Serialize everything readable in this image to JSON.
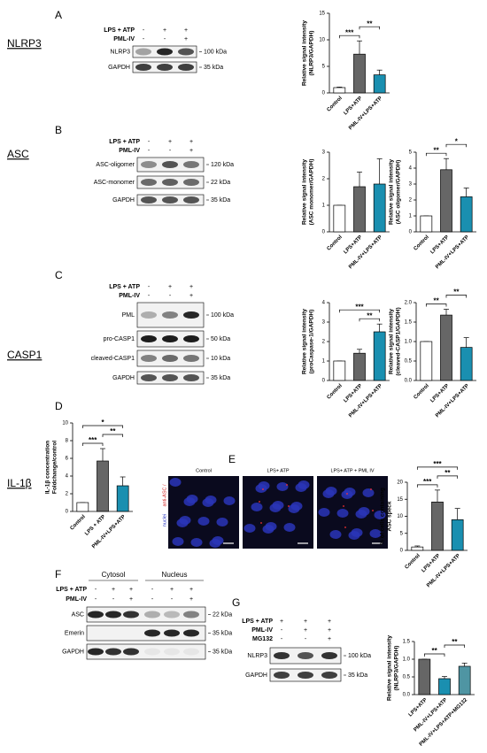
{
  "row_labels": [
    "NLRP3",
    "ASC",
    "CASP1",
    "IL-1β"
  ],
  "panel_letters": [
    "A",
    "B",
    "C",
    "D",
    "E",
    "F",
    "G"
  ],
  "blots": [
    {
      "conditions": [
        {
          "name": "LPS + ATP",
          "signs": [
            "-",
            "+",
            "+"
          ]
        },
        {
          "name": "PML-IV",
          "signs": [
            "-",
            "-",
            "+"
          ]
        }
      ],
      "rows": [
        {
          "name": "NLRP3",
          "kda": "100 kDa"
        },
        {
          "name": "GAPDH",
          "kda": "35 kDa"
        }
      ]
    },
    {
      "conditions": [
        {
          "name": "LPS + ATP",
          "signs": [
            "-",
            "+",
            "+"
          ]
        },
        {
          "name": "PML-IV",
          "signs": [
            "-",
            "-",
            "+"
          ]
        }
      ],
      "rows": [
        {
          "name": "ASC-oligomer",
          "kda": "120 kDa"
        },
        {
          "name": "ASC-monomer",
          "kda": "22 kDa"
        },
        {
          "name": "GAPDH",
          "kda": "35 kDa"
        }
      ]
    },
    {
      "conditions": [
        {
          "name": "LPS + ATP",
          "signs": [
            "-",
            "+",
            "+"
          ]
        },
        {
          "name": "PML-IV",
          "signs": [
            "-",
            "-",
            "+"
          ]
        }
      ],
      "rows": [
        {
          "name": "PML",
          "kda": "100 kDa"
        },
        {
          "name": "pro-CASP1",
          "kda": "50 kDa"
        },
        {
          "name": "cleaved-CASP1",
          "kda": "10 kDa"
        },
        {
          "name": "GAPDH",
          "kda": "35 kDa"
        }
      ]
    },
    {
      "groups": [
        "Cytosol",
        "Nucleus"
      ],
      "conditions": [
        {
          "name": "LPS + ATP",
          "signs": [
            "-",
            "+",
            "+",
            "-",
            "+",
            "+"
          ]
        },
        {
          "name": "PML-IV",
          "signs": [
            "-",
            "-",
            "+",
            "-",
            "-",
            "+"
          ]
        }
      ],
      "rows": [
        {
          "name": "ASC",
          "kda": "22 kDa"
        },
        {
          "name": "Emerin",
          "kda": "35 kDa"
        },
        {
          "name": "GAPDH",
          "kda": "35 kDa"
        }
      ]
    },
    {
      "conditions": [
        {
          "name": "LPS + ATP",
          "signs": [
            "+",
            "+",
            "+"
          ]
        },
        {
          "name": "PML-IV",
          "signs": [
            "-",
            "+",
            "+"
          ]
        },
        {
          "name": "MG132",
          "signs": [
            "-",
            "-",
            "+"
          ]
        }
      ],
      "rows": [
        {
          "name": "NLRP3",
          "kda": "100 kDa"
        },
        {
          "name": "GAPDH",
          "kda": "35 kDa"
        }
      ]
    }
  ],
  "microscopy": {
    "labels": [
      "Control",
      "LPS+ ATP",
      "LPS+ ATP + PML IV"
    ],
    "stain": [
      "anti-ASC /",
      "nuclei"
    ]
  },
  "chart_data": [
    {
      "type": "bar",
      "ylabel_lines": [
        "Relative signal intensity",
        "(NLRP3/GAPDH)"
      ],
      "categories": [
        "Control",
        "LPS+ATP",
        "PML-IV+LPS+ATP"
      ],
      "values": [
        1,
        7.3,
        3.4
      ],
      "errors": [
        0.1,
        2.5,
        0.9
      ],
      "colors": [
        "#ffffff",
        "#666666",
        "#1a8fb0"
      ],
      "ylim": [
        0,
        15
      ],
      "yticks": [
        0,
        5,
        10,
        15
      ],
      "significance": [
        {
          "between": [
            "Control",
            "LPS+ATP"
          ],
          "label": "***"
        },
        {
          "between": [
            "LPS+ATP",
            "PML-IV+LPS+ATP"
          ],
          "label": "**"
        }
      ]
    },
    {
      "type": "bar",
      "ylabel_lines": [
        "Relative signal intensity",
        "(ASC monomer/GAPDH)"
      ],
      "categories": [
        "Control",
        "LPS+ATP",
        "PML-IV+LPS+ATP"
      ],
      "values": [
        1,
        1.7,
        1.8
      ],
      "errors": [
        0,
        0.55,
        0.95
      ],
      "colors": [
        "#ffffff",
        "#666666",
        "#1a8fb0"
      ],
      "ylim": [
        0,
        3
      ],
      "yticks": [
        0,
        1,
        2,
        3
      ],
      "significance": []
    },
    {
      "type": "bar",
      "ylabel_lines": [
        "Relative signal intensity",
        "(ASC oligomer/GAPDH)"
      ],
      "categories": [
        "Control",
        "LPS+ATP",
        "PML-IV+LPS+ATP"
      ],
      "values": [
        1,
        3.9,
        2.2
      ],
      "errors": [
        0,
        0.7,
        0.55
      ],
      "colors": [
        "#ffffff",
        "#666666",
        "#1a8fb0"
      ],
      "ylim": [
        0,
        5
      ],
      "yticks": [
        0,
        1,
        2,
        3,
        4,
        5
      ],
      "significance": [
        {
          "between": [
            "Control",
            "LPS+ATP"
          ],
          "label": "**"
        },
        {
          "between": [
            "LPS+ATP",
            "PML-IV+LPS+ATP"
          ],
          "label": "*"
        }
      ]
    },
    {
      "type": "bar",
      "ylabel_lines": [
        "Relative signal intensity",
        "(proCaspase-1/GAPDH)"
      ],
      "categories": [
        "Control",
        "LPS+ATP",
        "PML-IV+LPS+ATP"
      ],
      "values": [
        1,
        1.4,
        2.5
      ],
      "errors": [
        0,
        0.2,
        0.4
      ],
      "colors": [
        "#ffffff",
        "#666666",
        "#1a8fb0"
      ],
      "ylim": [
        0,
        4
      ],
      "yticks": [
        0,
        1,
        2,
        3,
        4
      ],
      "significance": [
        {
          "between": [
            "LPS+ATP",
            "PML-IV+LPS+ATP"
          ],
          "label": "**"
        },
        {
          "between": [
            "Control",
            "PML-IV+LPS+ATP"
          ],
          "label": "***"
        }
      ]
    },
    {
      "type": "bar",
      "ylabel_lines": [
        "Relative signal intensity",
        "(cleaved-CASP1/GAPDH)"
      ],
      "categories": [
        "Control",
        "LPS+ATP",
        "PML-IV+LPS+ATP"
      ],
      "values": [
        1,
        1.68,
        0.85
      ],
      "errors": [
        0,
        0.15,
        0.25
      ],
      "colors": [
        "#ffffff",
        "#666666",
        "#1a8fb0"
      ],
      "ylim": [
        0,
        2
      ],
      "yticks": [
        {
          "value": 0,
          "label": "0.0"
        },
        0.5,
        {
          "value": 1,
          "label": "1.0"
        },
        1.5,
        {
          "value": 2,
          "label": "2.0"
        }
      ],
      "significance": [
        {
          "between": [
            "Control",
            "LPS+ATP"
          ],
          "label": "**"
        },
        {
          "between": [
            "LPS+ATP",
            "PML-IV+LPS+ATP"
          ],
          "label": "**"
        }
      ]
    },
    {
      "type": "bar",
      "ylabel_lines": [
        "IL-1β concentration",
        "Foldchange/control"
      ],
      "categories": [
        "Control",
        "LPS + ATP",
        "PML-IV+LPS+ATP"
      ],
      "values": [
        1,
        5.7,
        2.9
      ],
      "errors": [
        0,
        1.4,
        1.0
      ],
      "colors": [
        "#ffffff",
        "#666666",
        "#1a8fb0"
      ],
      "ylim": [
        0,
        10
      ],
      "yticks": [
        0,
        2,
        4,
        6,
        8,
        10
      ],
      "significance": [
        {
          "between": [
            "Control",
            "LPS + ATP"
          ],
          "label": "***"
        },
        {
          "between": [
            "LPS + ATP",
            "PML-IV+LPS+ATP"
          ],
          "label": "**"
        },
        {
          "between": [
            "Control",
            "PML-IV+LPS+ATP"
          ],
          "label": "*"
        }
      ]
    },
    {
      "type": "bar",
      "ylabel_lines": [
        "% of cells containing",
        "ASC speck"
      ],
      "categories": [
        "Control",
        "LPS+ATP",
        "PML-IV+LPS+ATP"
      ],
      "values": [
        1,
        14.2,
        9
      ],
      "errors": [
        0.3,
        3.5,
        3.3
      ],
      "colors": [
        "#ffffff",
        "#666666",
        "#1a8fb0"
      ],
      "ylim": [
        0,
        20
      ],
      "yticks": [
        0,
        5,
        10,
        15,
        20
      ],
      "significance": [
        {
          "between": [
            "Control",
            "LPS+ATP"
          ],
          "label": "***"
        },
        {
          "between": [
            "LPS+ATP",
            "PML-IV+LPS+ATP"
          ],
          "label": "**"
        },
        {
          "between": [
            "Control",
            "PML-IV+LPS+ATP"
          ],
          "label": "***"
        }
      ]
    },
    {
      "type": "bar",
      "ylabel_lines": [
        "Relative signal intensity",
        "(NLRP3/GAPDH)"
      ],
      "categories": [
        "LPS+ATP",
        "PML-IV+LPS+ATP",
        "PML-IV+LPS+ATP+MG132"
      ],
      "values": [
        1,
        0.45,
        0.8
      ],
      "errors": [
        0,
        0.06,
        0.09
      ],
      "colors": [
        "#666666",
        "#1a8fb0",
        "#4f95a3"
      ],
      "ylim": [
        0,
        1.5
      ],
      "yticks": [
        {
          "value": 0,
          "label": "0.0"
        },
        0.5,
        {
          "value": 1,
          "label": "1.0"
        },
        1.5
      ],
      "significance": [
        {
          "between": [
            "LPS+ATP",
            "PML-IV+LPS+ATP"
          ],
          "label": "**"
        },
        {
          "between": [
            "PML-IV+LPS+ATP",
            "PML-IV+LPS+ATP+MG132"
          ],
          "label": "**"
        }
      ]
    }
  ]
}
